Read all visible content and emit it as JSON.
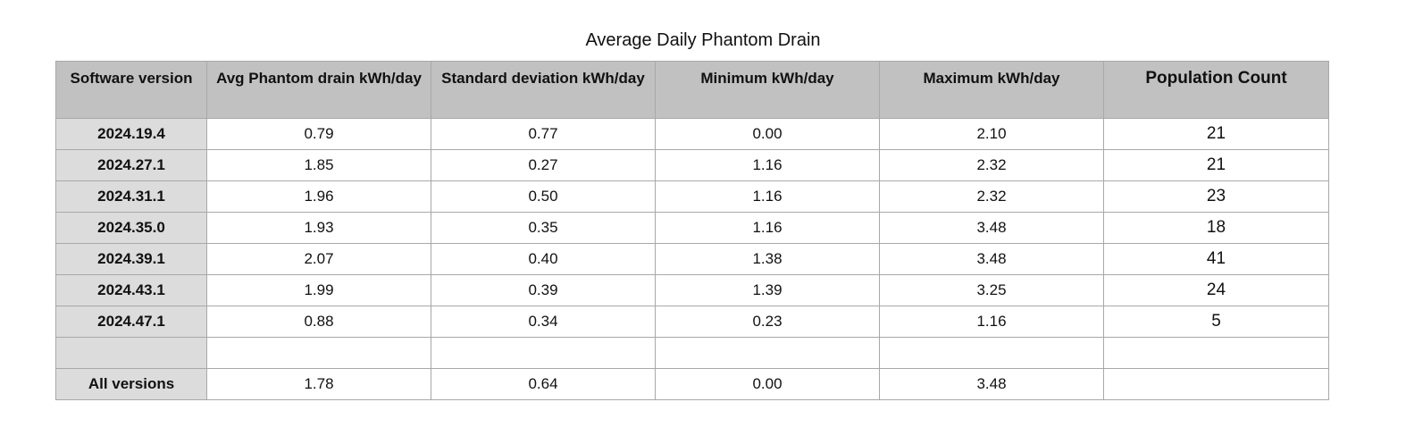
{
  "chart_data": {
    "type": "table",
    "title": "Average Daily Phantom Drain",
    "columns": [
      "Software version",
      "Avg Phantom drain kWh/day",
      "Standard deviation kWh/day",
      "Minimum kWh/day",
      "Maximum kWh/day",
      "Population Count"
    ],
    "rows": [
      [
        "2024.19.4",
        "0.79",
        "0.77",
        "0.00",
        "2.10",
        "21"
      ],
      [
        "2024.27.1",
        "1.85",
        "0.27",
        "1.16",
        "2.32",
        "21"
      ],
      [
        "2024.31.1",
        "1.96",
        "0.50",
        "1.16",
        "2.32",
        "23"
      ],
      [
        "2024.35.0",
        "1.93",
        "0.35",
        "1.16",
        "3.48",
        "18"
      ],
      [
        "2024.39.1",
        "2.07",
        "0.40",
        "1.38",
        "3.48",
        "41"
      ],
      [
        "2024.43.1",
        "1.99",
        "0.39",
        "1.39",
        "3.25",
        "24"
      ],
      [
        "2024.47.1",
        "0.88",
        "0.34",
        "0.23",
        "1.16",
        "5"
      ],
      [
        "",
        "",
        "",
        "",
        "",
        ""
      ],
      [
        "All versions",
        "1.78",
        "0.64",
        "0.00",
        "3.48",
        ""
      ]
    ]
  },
  "colors": {
    "header_background": "#c0c1c0",
    "row_header_background": "#dcdcdc",
    "cell_background": "#ffffff",
    "grid_line": "#a8a8a8"
  }
}
